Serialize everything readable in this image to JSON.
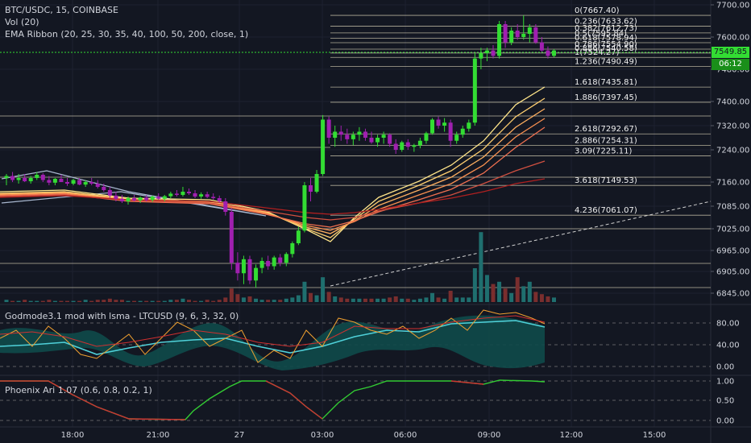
{
  "colors": {
    "background": "#131722",
    "grid": "#1e2230",
    "text": "#d1d4dc",
    "up": "#33dd33",
    "down": "#a020b0",
    "level_line": "#e8dfc0",
    "fib_text": "#f0f0f0",
    "ema_fast": "#ffe58a",
    "ema_slow": "#b02020",
    "osc_teal": "#1a8a8a",
    "osc_fill": "#104a4a",
    "osc_cyan": "#4fd1d9",
    "osc_orange": "#f0a030",
    "osc_red": "#d03030",
    "phoenix_green": "#33cc33",
    "phoenix_red": "#cc3333",
    "current_price_bg": "#33dd33"
  },
  "legend": {
    "symbol": "BTC/USDC, 15, COINBASE",
    "volume": "Vol (20)",
    "ema": "EMA Ribbon (20, 25, 30, 35, 40, 100, 50, 200, close, 1)",
    "osc1": "Godmode3.1 mod with lsma - LTCUSD (9, 6, 3, 32, 0)",
    "osc2": "Phoenix Ari 1.07 (0.6, 0.8, 0.2, 1)"
  },
  "price_axis": {
    "ticks": [
      "7700.00",
      "7600.00",
      "7480.00",
      "7400.00",
      "7320.00",
      "7240.00",
      "7160.00",
      "7085.00",
      "7025.00",
      "6965.00",
      "6905.00",
      "6845.00"
    ],
    "current_price": "7549.85",
    "countdown": "06:12"
  },
  "osc1_axis": {
    "ticks": [
      "80.00",
      "40.00",
      "0.00"
    ]
  },
  "osc2_axis": {
    "ticks": [
      "1.00",
      "0.50",
      "0.00"
    ]
  },
  "time_axis": {
    "ticks": [
      "18:00",
      "21:00",
      "27",
      "03:00",
      "06:00",
      "09:00",
      "12:00",
      "15:00"
    ]
  },
  "fib_levels": [
    {
      "label": "0(7667.40)",
      "price": 7667.4
    },
    {
      "label": "0.236(7633.62)",
      "price": 7633.62
    },
    {
      "label": "0.382(7612.73)",
      "price": 7612.73
    },
    {
      "label": "0.5(7595.84)",
      "price": 7595.84
    },
    {
      "label": "0.618(7578.94)",
      "price": 7578.94
    },
    {
      "label": "0.786(7554.90)",
      "price": 7554.9
    },
    {
      "label": "0.886(7540.58)",
      "price": 7540.58
    },
    {
      "label": "1(7524.27)",
      "price": 7524.27
    },
    {
      "label": "1.236(7490.49)",
      "price": 7490.49
    },
    {
      "label": "1.618(7435.81)",
      "price": 7435.81
    },
    {
      "label": "1.886(7397.45)",
      "price": 7397.45
    },
    {
      "label": "2.618(7292.67)",
      "price": 7292.67
    },
    {
      "label": "2.886(7254.31)",
      "price": 7254.31
    },
    {
      "label": "3.09(7225.11)",
      "price": 7225.11
    },
    {
      "label": "3.618(7149.53)",
      "price": 7149.53
    },
    {
      "label": "4.236(7061.07)",
      "price": 7061.07
    }
  ]
}
